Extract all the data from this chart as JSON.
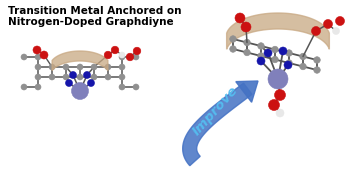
{
  "title_line1": "Transition Metal Anchored on",
  "title_line2": "Nitrogen-Doped Graphdiyne",
  "title_fontsize": 7.5,
  "bg_color": "#ffffff",
  "arrow_color": "#4472C4",
  "arrow_text": "Improve",
  "arrow_text_color": "#55BBEE",
  "arrow_text_fontsize": 9.5,
  "metal_color": "#8080BB",
  "carbon_color": "#909090",
  "nitrogen_color": "#1515AA",
  "oxygen_color": "#CC1111",
  "hydrogen_color": "#E8E8E8",
  "bond_color": "#555555",
  "ribbon_color": "#C8A882"
}
